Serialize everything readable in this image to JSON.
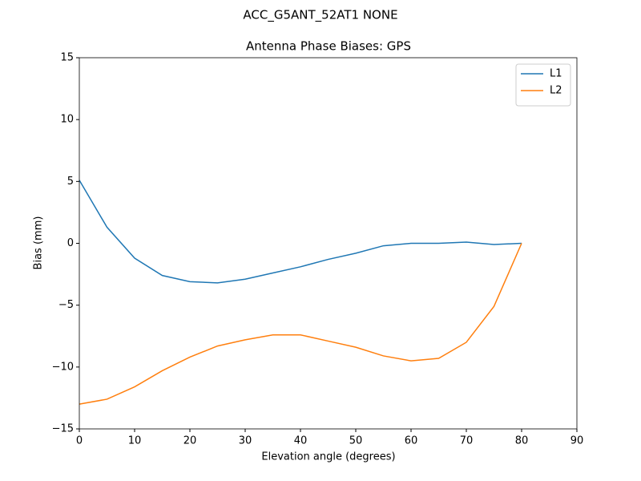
{
  "chart_data": {
    "type": "line",
    "suptitle": "ACC_G5ANT_52AT1 NONE",
    "title": "Antenna Phase Biases: GPS",
    "xlabel": "Elevation angle (degrees)",
    "ylabel": "Bias (mm)",
    "x": [
      0,
      5,
      10,
      15,
      20,
      25,
      30,
      35,
      40,
      45,
      50,
      55,
      60,
      65,
      70,
      75,
      80
    ],
    "series": [
      {
        "name": "L1",
        "color": "#1f77b4",
        "values": [
          5.1,
          1.3,
          -1.2,
          -2.6,
          -3.1,
          -3.2,
          -2.9,
          -2.4,
          -1.9,
          -1.3,
          -0.8,
          -0.2,
          0.0,
          0.0,
          0.1,
          -0.1,
          0.0
        ]
      },
      {
        "name": "L2",
        "color": "#ff7f0e",
        "values": [
          -13.0,
          -12.6,
          -11.6,
          -10.3,
          -9.2,
          -8.3,
          -7.8,
          -7.4,
          -7.4,
          -7.9,
          -8.4,
          -9.1,
          -9.5,
          -9.3,
          -8.0,
          -5.1,
          0.0
        ]
      }
    ],
    "xlim": [
      0,
      90
    ],
    "xticks": [
      0,
      10,
      20,
      30,
      40,
      50,
      60,
      70,
      80,
      90
    ],
    "ylim": [
      -15,
      15
    ],
    "yticks": [
      {
        "value": -15,
        "label": "−15"
      },
      {
        "value": -10,
        "label": "−10"
      },
      {
        "value": -5,
        "label": "−5"
      },
      0,
      5,
      10,
      15
    ],
    "legend": "upper right",
    "grid": false
  }
}
